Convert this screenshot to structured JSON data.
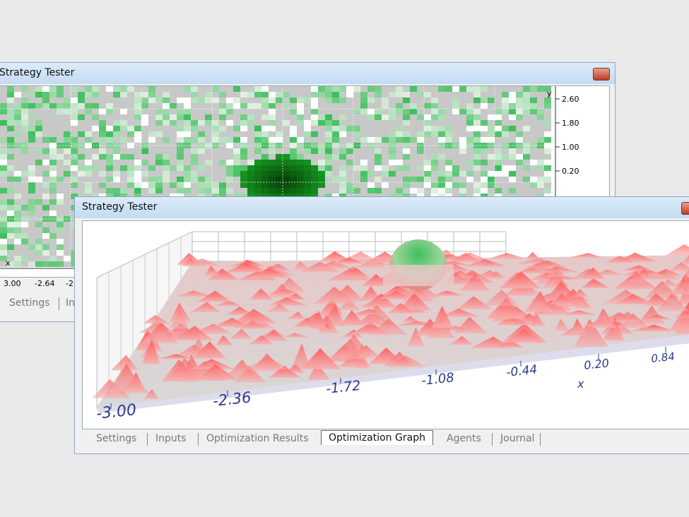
{
  "back_window": {
    "title": "Strategy Tester",
    "y_axis": {
      "name": "y",
      "labels": [
        "2.60",
        "1.80",
        "1.00",
        "0.20"
      ]
    },
    "x_axis": {
      "name": "x",
      "labels": [
        "3.00",
        "-2.64",
        "-2."
      ]
    },
    "tabs": [
      "Settings",
      "In"
    ]
  },
  "front_window": {
    "title": "Strategy Tester",
    "x_axis": {
      "name": "x",
      "labels": [
        "-3.00",
        "-2.36",
        "-1.72",
        "-1.08",
        "-0.44",
        "0.20",
        "0.84"
      ]
    },
    "tabs": [
      "Settings",
      "Inputs",
      "Optimization Results",
      "Optimization Graph",
      "Agents",
      "Journal"
    ]
  }
}
